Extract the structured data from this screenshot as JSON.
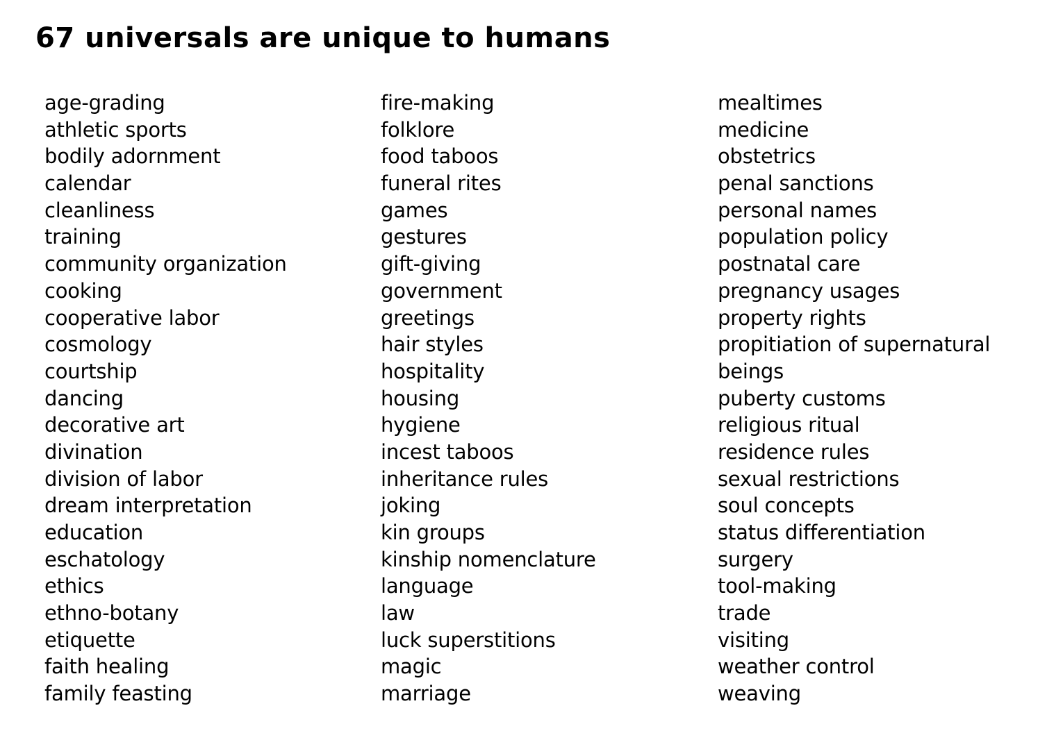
{
  "title": "67 universals are unique to humans",
  "columns": [
    [
      "age-grading",
      "athletic sports",
      "bodily adornment",
      "calendar",
      "cleanliness",
      "training",
      "community organization",
      "cooking",
      "cooperative labor",
      "cosmology",
      "courtship",
      "dancing",
      "decorative art",
      "divination",
      "division of labor",
      "dream interpretation",
      "education",
      "eschatology",
      "ethics",
      "ethno-botany",
      "etiquette",
      "faith healing",
      "family feasting"
    ],
    [
      "fire-making",
      "folklore",
      "food taboos",
      "funeral rites",
      "games",
      "gestures",
      "gift-giving",
      "government",
      "greetings",
      "hair styles",
      "hospitality",
      "housing",
      "hygiene",
      "incest taboos",
      "inheritance rules",
      "joking",
      "kin groups",
      "kinship nomenclature",
      "language",
      "law",
      "luck superstitions",
      "magic",
      "marriage"
    ],
    [
      "mealtimes",
      "medicine",
      "obstetrics",
      "penal sanctions",
      "personal names",
      "population policy",
      "postnatal care",
      "pregnancy usages",
      "property rights",
      "propitiation of supernatural",
      "beings",
      "puberty customs",
      "religious ritual",
      "residence rules",
      "sexual restrictions",
      "soul concepts",
      "status differentiation",
      "surgery",
      "tool-making",
      "trade",
      "visiting",
      "weather control",
      "weaving"
    ]
  ]
}
